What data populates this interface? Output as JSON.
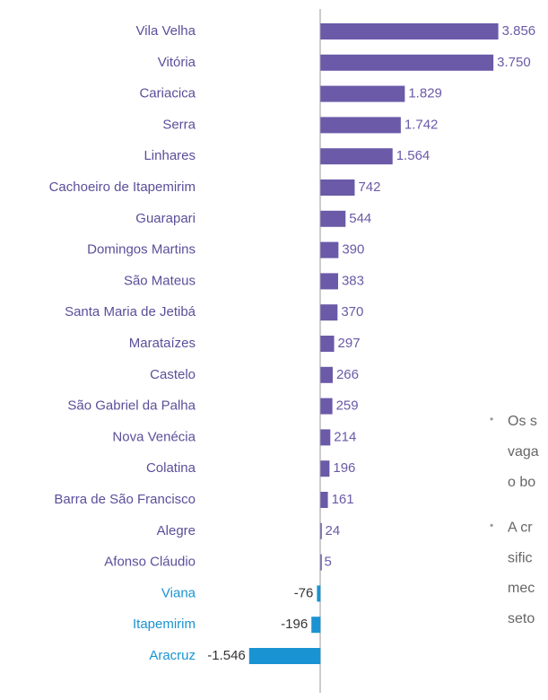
{
  "chart_data": {
    "type": "barh",
    "categories": [
      "Vila Velha",
      "Vitória",
      "Cariacica",
      "Serra",
      "Linhares",
      "Cachoeiro de Itapemirim",
      "Guarapari",
      "Domingos Martins",
      "São Mateus",
      "Santa Maria de Jetibá",
      "Marataízes",
      "Castelo",
      "São Gabriel da Palha",
      "Nova Venécia",
      "Colatina",
      "Barra de São Francisco",
      "Alegre",
      "Afonso Cláudio",
      "Viana",
      "Itapemirim",
      "Aracruz"
    ],
    "values": [
      3856,
      3750,
      1829,
      1742,
      1564,
      742,
      544,
      390,
      383,
      370,
      297,
      266,
      259,
      214,
      196,
      161,
      24,
      5,
      -76,
      -196,
      -1546
    ],
    "value_labels": [
      "3.856",
      "3.750",
      "1.829",
      "1.742",
      "1.564",
      "742",
      "544",
      "390",
      "383",
      "370",
      "297",
      "266",
      "259",
      "214",
      "196",
      "161",
      "24",
      "5",
      "-76",
      "-196",
      "-1.546"
    ],
    "colors": {
      "positive": "#6a5aa8",
      "negative": "#1a93d2"
    },
    "xlim": [
      -1600,
      4000
    ],
    "annotations": [
      {
        "lines": [
          "Os s",
          "vaga",
          "o bo"
        ]
      },
      {
        "lines": [
          "A cr",
          "sific",
          "mec",
          "seto"
        ]
      }
    ]
  }
}
